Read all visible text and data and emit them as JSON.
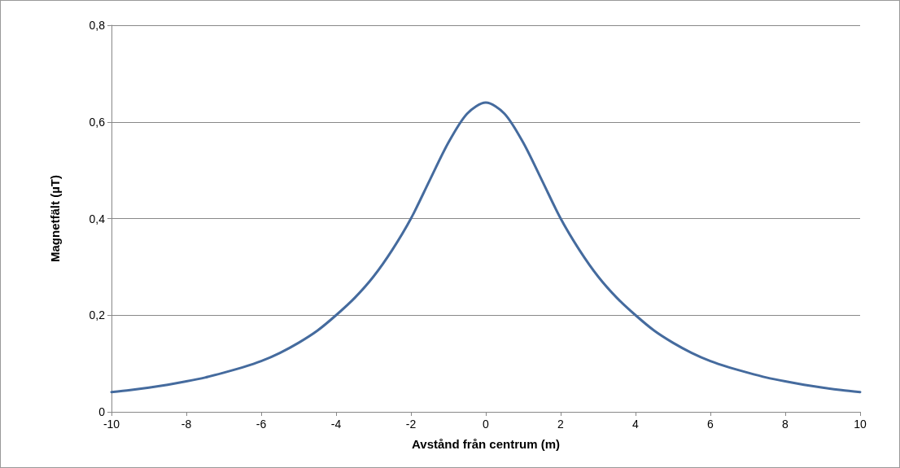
{
  "chart_data": {
    "type": "line",
    "xlabel": "Avstånd från centrum (m)",
    "ylabel": "Magnetfält (µT)",
    "x": [
      -10,
      -9.5,
      -9,
      -8.5,
      -8,
      -7.5,
      -7,
      -6.5,
      -6,
      -5.5,
      -5,
      -4.5,
      -4,
      -3.5,
      -3,
      -2.5,
      -2,
      -1.5,
      -1,
      -0.5,
      0,
      0.5,
      1,
      1.5,
      2,
      2.5,
      3,
      3.5,
      4,
      4.5,
      5,
      5.5,
      6,
      6.5,
      7,
      7.5,
      8,
      8.5,
      9,
      9.5,
      10
    ],
    "series": [
      {
        "color": "#456b9e",
        "values": [
          0.041,
          0.045,
          0.05,
          0.056,
          0.063,
          0.071,
          0.081,
          0.092,
          0.105,
          0.122,
          0.143,
          0.168,
          0.2,
          0.236,
          0.28,
          0.335,
          0.4,
          0.479,
          0.557,
          0.617,
          0.64,
          0.617,
          0.557,
          0.479,
          0.4,
          0.335,
          0.28,
          0.236,
          0.2,
          0.168,
          0.143,
          0.122,
          0.105,
          0.092,
          0.081,
          0.071,
          0.063,
          0.056,
          0.05,
          0.045,
          0.041
        ]
      }
    ],
    "xlim": [
      -10,
      10
    ],
    "xticks": [
      -10,
      -8,
      -6,
      -4,
      -2,
      0,
      2,
      4,
      6,
      8,
      10
    ],
    "ylim": [
      0,
      0.8
    ],
    "yticks": [
      {
        "value": 0,
        "label": "0"
      },
      {
        "value": 0.2,
        "label": "0,2"
      },
      {
        "value": 0.4,
        "label": "0,4"
      },
      {
        "value": 0.6,
        "label": "0,6"
      },
      {
        "value": 0.8,
        "label": "0,8"
      }
    ],
    "grid": "y",
    "marker": "none",
    "line_style": "solid"
  }
}
